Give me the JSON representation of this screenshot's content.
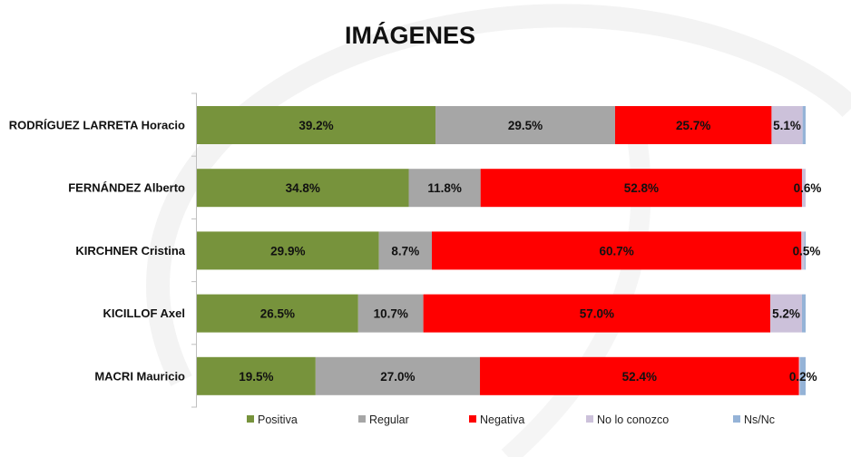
{
  "chart_data": {
    "type": "bar",
    "orientation": "horizontal",
    "stacked": true,
    "title": "IMÁGENES",
    "categories": [
      "RODRÍGUEZ LARRETA Horacio",
      "FERNÁNDEZ Alberto",
      "KIRCHNER Cristina",
      "KICILLOF Axel",
      "MACRI Mauricio"
    ],
    "series": [
      {
        "name": "Positiva",
        "color": "#77933c",
        "values": [
          39.2,
          34.8,
          29.9,
          26.5,
          19.5
        ],
        "labels": [
          "39.2%",
          "34.8%",
          "29.9%",
          "26.5%",
          "19.5%"
        ]
      },
      {
        "name": "Regular",
        "color": "#a6a6a6",
        "values": [
          29.5,
          11.8,
          8.7,
          10.7,
          27.0
        ],
        "labels": [
          "29.5%",
          "11.8%",
          "8.7%",
          "10.7%",
          "27.0%"
        ]
      },
      {
        "name": "Negativa",
        "color": "#ff0000",
        "values": [
          25.7,
          52.8,
          60.7,
          57.0,
          52.4
        ],
        "labels": [
          "25.7%",
          "52.8%",
          "60.7%",
          "57.0%",
          "52.4%"
        ]
      },
      {
        "name": "No lo conozco",
        "color": "#ccc1da",
        "values": [
          5.1,
          0.6,
          0.5,
          5.2,
          0.2
        ],
        "labels": [
          "5.1%",
          "0.6%",
          "0.5%",
          "5.2%",
          "0.2%"
        ]
      },
      {
        "name": "Ns/Nc",
        "color": "#95b3d7",
        "values": [
          0.5,
          0,
          0.2,
          0.6,
          0.9
        ],
        "labels": [
          "",
          "",
          "",
          "",
          ""
        ]
      }
    ],
    "xlim": [
      0,
      100
    ],
    "grid": false,
    "legend": "bottom"
  }
}
